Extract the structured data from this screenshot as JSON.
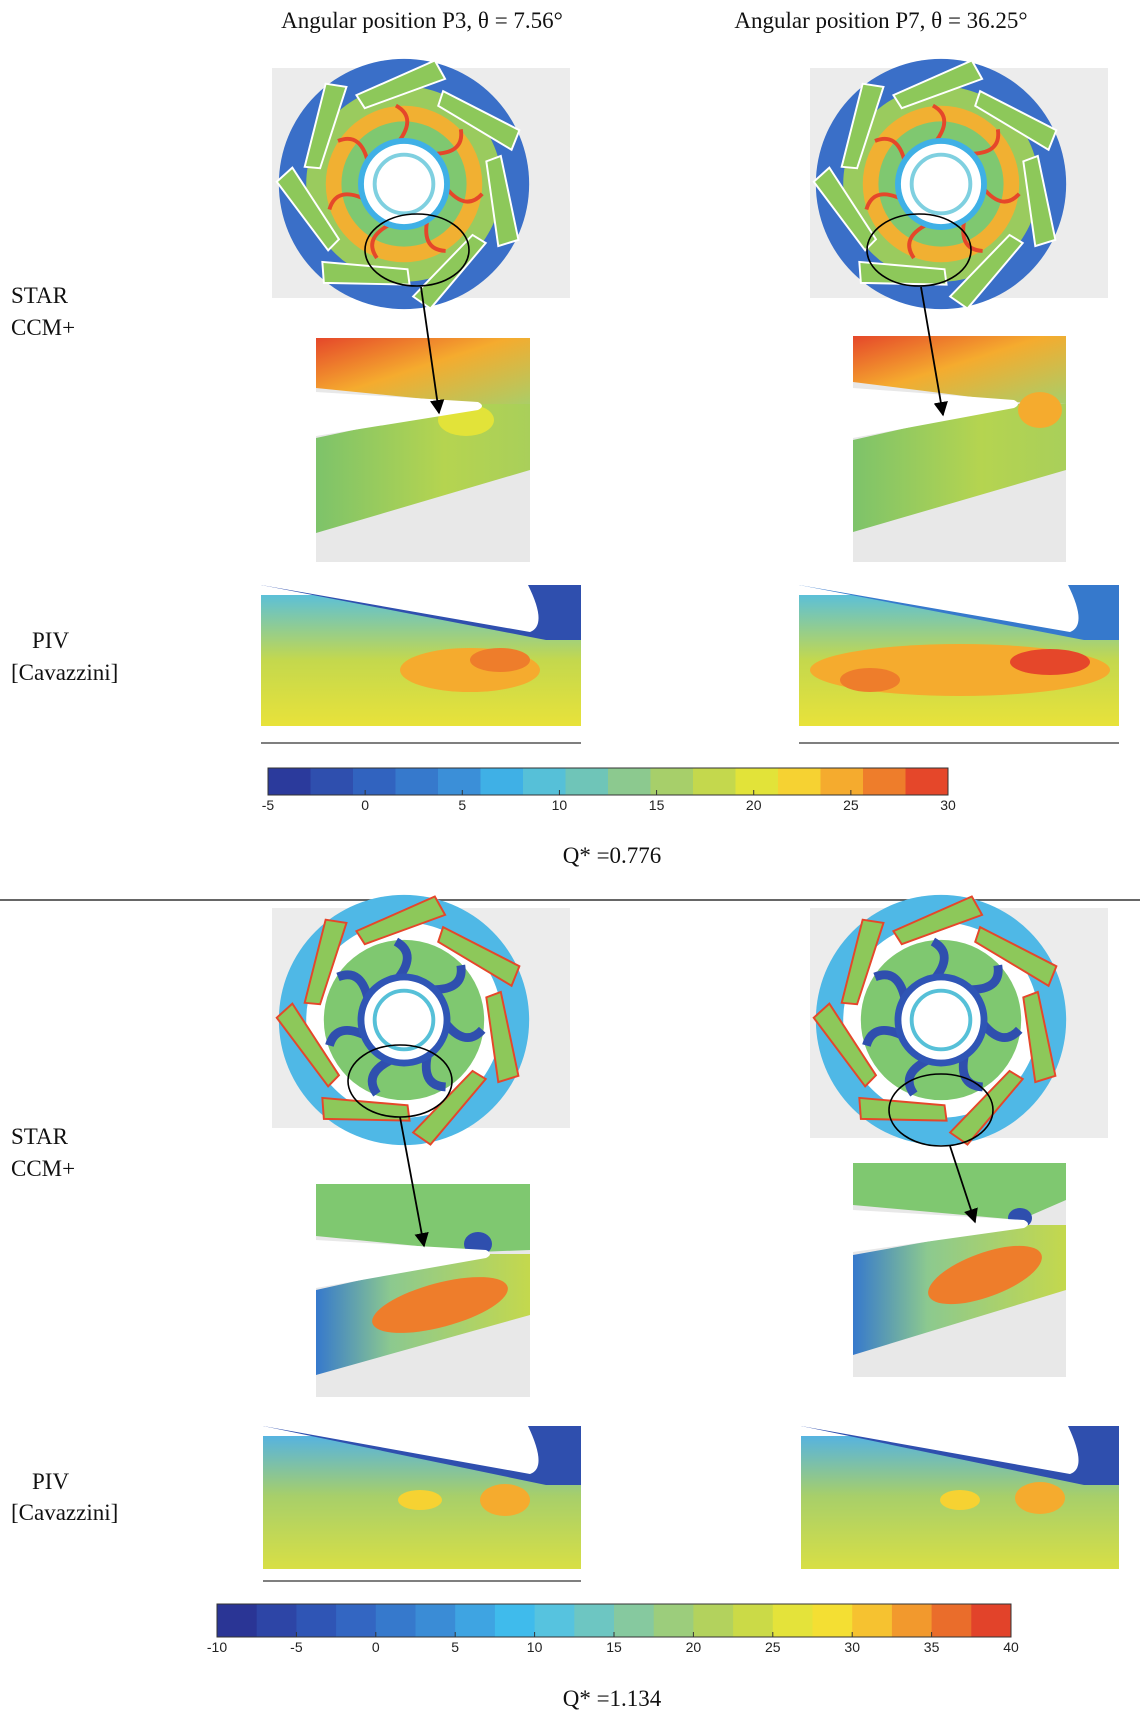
{
  "column_titles": [
    "Angular position P3, θ = 7.56°",
    "Angular position P7, θ = 36.25°"
  ],
  "panels": [
    {
      "row_labels": {
        "cfd": [
          "STAR",
          "CCM+"
        ],
        "piv": [
          "PIV",
          "[Cavazzini]"
        ]
      },
      "colorbar": {
        "lim": [
          -5,
          30
        ],
        "ticks": [
          -5,
          0,
          5,
          10,
          15,
          20,
          25,
          30
        ],
        "colors": [
          "#2b3a9c",
          "#2f4fae",
          "#3163bf",
          "#3679cc",
          "#3b8fd8",
          "#3fb0e6",
          "#56c0d8",
          "#6fc5b8",
          "#8cc98f",
          "#a7cf6a",
          "#c4d84d",
          "#e2e339",
          "#f6d232",
          "#f5ab2e",
          "#ee7d2b",
          "#e5472a"
        ]
      },
      "caption": "Q*  =0.776"
    },
    {
      "row_labels": {
        "cfd": [
          "STAR",
          "CCM+"
        ],
        "piv": [
          "PIV",
          "[Cavazzini]"
        ]
      },
      "colorbar": {
        "lim": [
          -10,
          40
        ],
        "ticks": [
          -10,
          -5,
          0,
          5,
          10,
          15,
          20,
          25,
          30,
          35,
          40
        ],
        "colors": [
          "#2a3595",
          "#2d45a6",
          "#2f55b5",
          "#3366c2",
          "#3679cc",
          "#3a8cd6",
          "#3ea4e2",
          "#3fbbec",
          "#56c3df",
          "#6dc6c2",
          "#86c99f",
          "#9ccd7c",
          "#b3d25d",
          "#cbda47",
          "#e4e33a",
          "#f4df33",
          "#f6c230",
          "#f2992d",
          "#ea6d2b",
          "#e2432a"
        ]
      },
      "caption": "Q*  =1.134"
    }
  ]
}
